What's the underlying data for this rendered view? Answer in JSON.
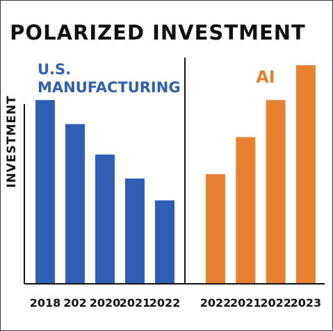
{
  "chart_data": {
    "title": "POLARIZED INVESTMENT",
    "ylabel": "INVESTMENT",
    "type": "bar",
    "grid": false,
    "panels": [
      {
        "label": "U.S.\nMANUFACTURING",
        "categories": [
          "2018",
          "202",
          "2020",
          "2021",
          "2022"
        ],
        "values": [
          84,
          73,
          59,
          48,
          38
        ],
        "ylim": [
          0,
          100
        ],
        "color": "#2f5fb4"
      },
      {
        "label": "AI",
        "categories": [
          "2022",
          "2021",
          "2022",
          "2023"
        ],
        "values": [
          50,
          67,
          84,
          100
        ],
        "ylim": [
          0,
          100
        ],
        "color": "#e8812f"
      }
    ],
    "colors": {
      "title": "#111111",
      "axis": "#111111",
      "panel_divider": "#111111"
    }
  }
}
